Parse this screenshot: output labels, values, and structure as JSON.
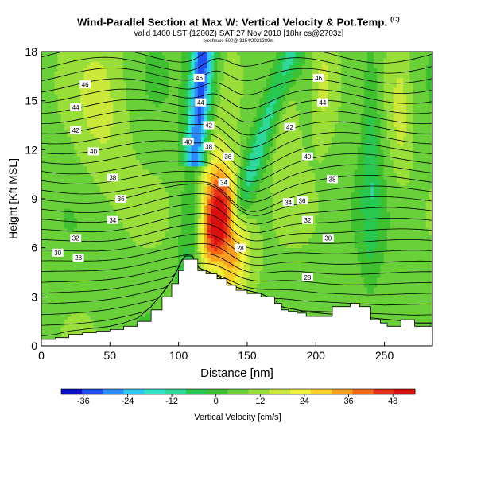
{
  "chart_data": {
    "type": "heatmap",
    "title": "Wind-Parallel Section at Max W: Vertical Velocity & Pot.Temp.",
    "title_mark": "(C)",
    "subtitle": "Valid 1400 LST (1200Z) SAT 27 Nov 2010 [18hr cs@2703z]",
    "subtitle2": "box:fmax~500@ 3154/2021289m",
    "xlabel": "Distance [nm]",
    "ylabel": "Height [Kft MSL]",
    "xlim": [
      0,
      285
    ],
    "ylim": [
      0,
      18
    ],
    "xticks": [
      0,
      50,
      100,
      150,
      200,
      250
    ],
    "yticks": [
      0,
      3,
      6,
      9,
      12,
      15,
      18
    ],
    "colorbar": {
      "label": "Vertical Velocity [cm/s]",
      "ticks": [
        -36,
        -24,
        -12,
        0,
        12,
        24,
        36,
        48
      ],
      "vmin": -42,
      "vmax": 54,
      "colors": [
        "#0a10c8",
        "#1e50f0",
        "#2c8cf8",
        "#2ec8f0",
        "#30e6c8",
        "#2ed89a",
        "#28c850",
        "#3ec030",
        "#6ad03a",
        "#9ade3a",
        "#cce83a",
        "#eef03a",
        "#f8d028",
        "#f8a020",
        "#f06818",
        "#e83018",
        "#d81010"
      ]
    },
    "terrain": [
      [
        0,
        0.4
      ],
      [
        10,
        0.5
      ],
      [
        20,
        0.7
      ],
      [
        30,
        0.8
      ],
      [
        40,
        0.9
      ],
      [
        50,
        1.0
      ],
      [
        60,
        1.2
      ],
      [
        70,
        1.5
      ],
      [
        80,
        2.2
      ],
      [
        88,
        3.0
      ],
      [
        95,
        3.8
      ],
      [
        100,
        4.6
      ],
      [
        104,
        5.3
      ],
      [
        110,
        5.3
      ],
      [
        114,
        4.6
      ],
      [
        120,
        4.4
      ],
      [
        128,
        4.1
      ],
      [
        135,
        3.7
      ],
      [
        142,
        3.4
      ],
      [
        150,
        3.2
      ],
      [
        160,
        3.0
      ],
      [
        170,
        2.6
      ],
      [
        175,
        2.2
      ],
      [
        180,
        2.1
      ],
      [
        187,
        2.0
      ],
      [
        193,
        1.8
      ],
      [
        200,
        1.8
      ],
      [
        212,
        2.4
      ],
      [
        225,
        2.6
      ],
      [
        232,
        2.4
      ],
      [
        240,
        1.6
      ],
      [
        247,
        1.4
      ],
      [
        252,
        1.2
      ],
      [
        262,
        1.6
      ],
      [
        272,
        1.2
      ],
      [
        285,
        1.2
      ]
    ],
    "updraft_core": {
      "x": 131,
      "y": 7.6,
      "max": 52
    },
    "isentrope_labels": [
      {
        "x": 32,
        "y": 16.0,
        "text": "46"
      },
      {
        "x": 25,
        "y": 14.6,
        "text": "44"
      },
      {
        "x": 25,
        "y": 13.2,
        "text": "42"
      },
      {
        "x": 38,
        "y": 11.9,
        "text": "40"
      },
      {
        "x": 52,
        "y": 10.3,
        "text": "38"
      },
      {
        "x": 58,
        "y": 9.0,
        "text": "36"
      },
      {
        "x": 52,
        "y": 7.7,
        "text": "34"
      },
      {
        "x": 25,
        "y": 6.6,
        "text": "32"
      },
      {
        "x": 12,
        "y": 5.7,
        "text": "30"
      },
      {
        "x": 27,
        "y": 5.4,
        "text": "28"
      },
      {
        "x": 115,
        "y": 16.4,
        "text": "46"
      },
      {
        "x": 116,
        "y": 14.9,
        "text": "44"
      },
      {
        "x": 122,
        "y": 13.5,
        "text": "42"
      },
      {
        "x": 107,
        "y": 12.5,
        "text": "40"
      },
      {
        "x": 122,
        "y": 12.2,
        "text": "38"
      },
      {
        "x": 136,
        "y": 11.6,
        "text": "36"
      },
      {
        "x": 133,
        "y": 10.0,
        "text": "34"
      },
      {
        "x": 145,
        "y": 6.0,
        "text": "28"
      },
      {
        "x": 202,
        "y": 16.4,
        "text": "46"
      },
      {
        "x": 205,
        "y": 14.9,
        "text": "44"
      },
      {
        "x": 181,
        "y": 13.4,
        "text": "42"
      },
      {
        "x": 194,
        "y": 11.6,
        "text": "40"
      },
      {
        "x": 212,
        "y": 10.2,
        "text": "38"
      },
      {
        "x": 190,
        "y": 8.9,
        "text": "36"
      },
      {
        "x": 180,
        "y": 8.8,
        "text": "34"
      },
      {
        "x": 194,
        "y": 7.7,
        "text": "32"
      },
      {
        "x": 209,
        "y": 6.6,
        "text": "30"
      },
      {
        "x": 194,
        "y": 4.2,
        "text": "28"
      }
    ]
  }
}
